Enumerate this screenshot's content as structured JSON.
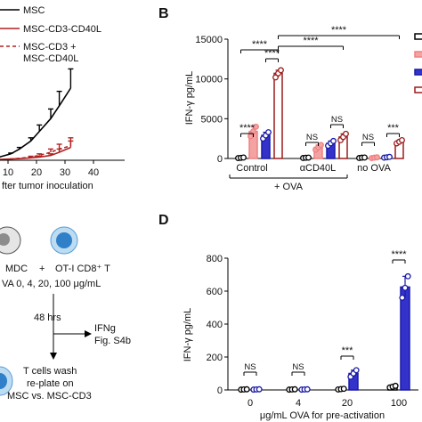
{
  "panels": {
    "A": {
      "legend": [
        "MSC",
        "MSC-CD3-CD40L",
        "MSC-CD3 +",
        "MSC-CD40L"
      ],
      "x_ticks": [
        "10",
        "20",
        "30",
        "40"
      ],
      "xlabel": "fter tumor inoculation",
      "series": [
        {
          "name": "MSC",
          "color": "#000000",
          "x": [
            4,
            7,
            11,
            14,
            18,
            21,
            25,
            28,
            32
          ],
          "y": [
            0.1,
            0.2,
            0.4,
            0.7,
            1.2,
            1.8,
            2.6,
            3.4,
            4.5
          ],
          "err": [
            0,
            0,
            0.05,
            0.1,
            0.2,
            0.4,
            0.6,
            0.9,
            1.2
          ]
        },
        {
          "name": "MSC-CD3-CD40L",
          "color": "#b22222",
          "x": [
            4,
            7,
            11,
            14,
            18,
            21,
            25,
            28,
            32
          ],
          "y": [
            0.05,
            0.05,
            0.08,
            0.1,
            0.15,
            0.2,
            0.3,
            0.5,
            0.8
          ],
          "err": [
            0,
            0,
            0,
            0,
            0,
            0.05,
            0.1,
            0.2,
            0.4
          ]
        },
        {
          "name": "MSC-CD3 + MSC-CD40L",
          "color": "#b22222",
          "dash": true,
          "x": [
            4,
            7,
            11,
            14,
            18,
            21,
            25,
            28,
            32
          ],
          "y": [
            0.05,
            0.05,
            0.08,
            0.12,
            0.2,
            0.3,
            0.5,
            0.7,
            0.9
          ],
          "err": [
            0,
            0,
            0,
            0,
            0.05,
            0.1,
            0.2,
            0.3,
            0.5
          ]
        }
      ]
    },
    "B": {
      "letter": "B",
      "ylabel": "IFN-γ pg/mL",
      "y_ticks": [
        "0",
        "5000",
        "10000",
        "15000"
      ],
      "group_labels": [
        "Control",
        "αCD40L",
        "no OVA"
      ],
      "bottom_label": "+ OVA",
      "sig": [
        "****",
        "****",
        "****",
        "****",
        "NS",
        "NS",
        "NS",
        "***"
      ]
    },
    "C": {
      "cells": [
        "MDC",
        "OT-I CD8⁺ T"
      ],
      "plus": "+",
      "ova_text": "VA 0, 4, 20, 100 μg/mL",
      "time": "48 hrs",
      "ifng": [
        "IFNg",
        "Fig. S4b"
      ],
      "wash": [
        "T cells wash",
        "re-plate on",
        "MSC vs. MSC-CD3"
      ]
    },
    "D": {
      "letter": "D",
      "ylabel": "IFN-γ pg/mL",
      "y_ticks": [
        "0",
        "200",
        "400",
        "600",
        "800"
      ],
      "x_ticks": [
        "0",
        "4",
        "20",
        "100"
      ],
      "xlabel": "μg/mL OVA for pre-activation",
      "sig": [
        "NS",
        "NS",
        "***",
        "****"
      ]
    }
  },
  "chart_data": [
    {
      "type": "line",
      "xlabel": "fter tumor inoculation",
      "x": [
        4,
        7,
        11,
        14,
        18,
        21,
        25,
        28,
        32
      ],
      "series": [
        {
          "name": "MSC",
          "values": [
            0.1,
            0.2,
            0.4,
            0.7,
            1.2,
            1.8,
            2.6,
            3.4,
            4.5
          ]
        },
        {
          "name": "MSC-CD3-CD40L",
          "values": [
            0.05,
            0.05,
            0.08,
            0.1,
            0.15,
            0.2,
            0.3,
            0.5,
            0.8
          ]
        },
        {
          "name": "MSC-CD3 + MSC-CD40L",
          "values": [
            0.05,
            0.05,
            0.08,
            0.12,
            0.2,
            0.3,
            0.5,
            0.7,
            0.9
          ]
        }
      ]
    },
    {
      "type": "bar",
      "ylabel": "IFN-γ pg/mL",
      "ylim": [
        0,
        15000
      ],
      "categories": [
        "Control",
        "αCD40L",
        "no OVA"
      ],
      "series": [
        {
          "name": "black",
          "values": [
            100,
            100,
            100
          ]
        },
        {
          "name": "pink",
          "values": [
            3400,
            1400,
            100
          ]
        },
        {
          "name": "blue",
          "values": [
            2900,
            1900,
            150
          ]
        },
        {
          "name": "darkred",
          "values": [
            10700,
            2700,
            2100
          ]
        }
      ],
      "points": [
        [
          [
            50,
            80,
            120
          ],
          [
            2800,
            3400,
            4000
          ],
          [
            2500,
            2900,
            3300
          ],
          [
            10200,
            10700,
            11100
          ]
        ],
        [
          [
            60,
            90,
            110
          ],
          [
            1100,
            1400,
            1700
          ],
          [
            1600,
            1900,
            2200
          ],
          [
            2300,
            2700,
            3100
          ]
        ],
        [
          [
            60,
            100,
            120
          ],
          [
            50,
            100,
            140
          ],
          [
            100,
            150,
            200
          ],
          [
            1900,
            2100,
            2300
          ]
        ]
      ]
    },
    {
      "type": "bar",
      "ylabel": "IFN-γ pg/mL",
      "xlabel": "μg/mL OVA for pre-activation",
      "ylim": [
        0,
        800
      ],
      "categories": [
        "0",
        "4",
        "20",
        "100"
      ],
      "series": [
        {
          "name": "white",
          "values": [
            3,
            3,
            5,
            20
          ]
        },
        {
          "name": "blue",
          "values": [
            3,
            3,
            100,
            625
          ]
        }
      ],
      "points": [
        [
          [
            2,
            3,
            4
          ],
          [
            2,
            3,
            4
          ]
        ],
        [
          [
            2,
            3,
            4
          ],
          [
            2,
            3,
            4
          ]
        ],
        [
          [
            3,
            5,
            7
          ],
          [
            80,
            100,
            120
          ]
        ],
        [
          [
            15,
            20,
            25
          ],
          [
            560,
            620,
            690
          ]
        ]
      ]
    }
  ]
}
